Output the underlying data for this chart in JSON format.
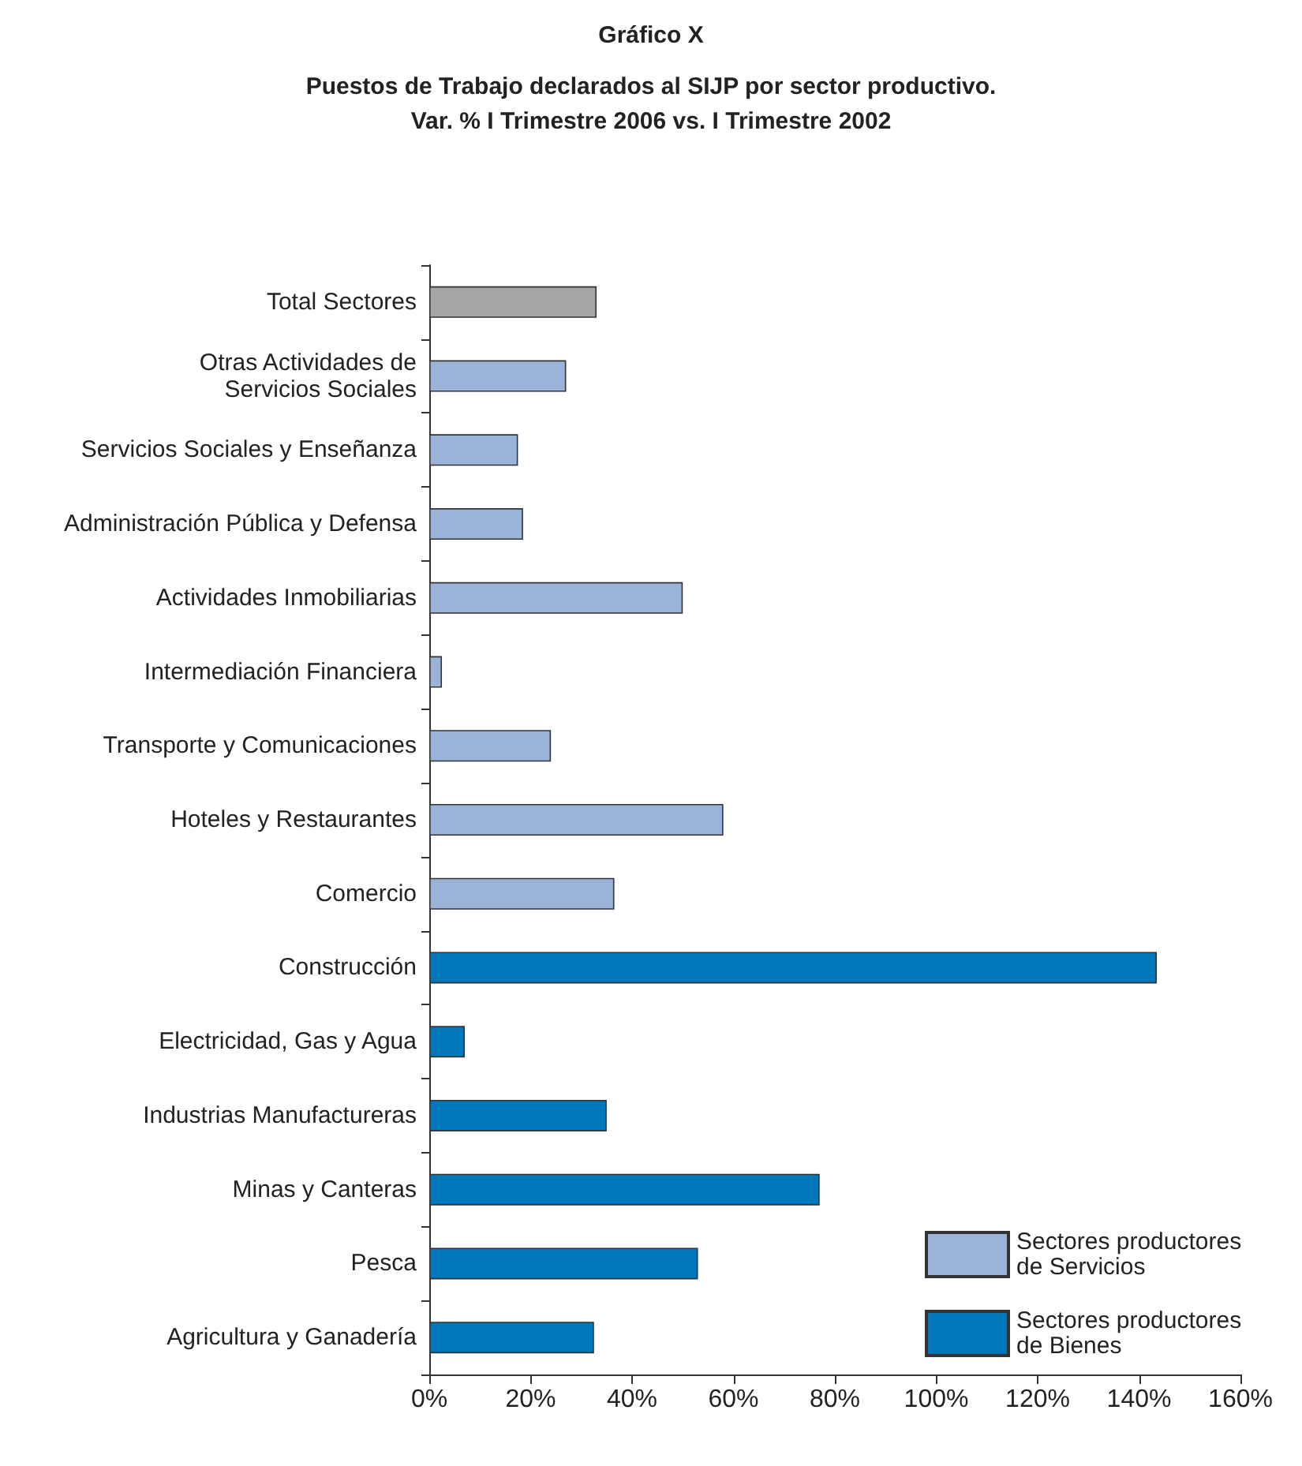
{
  "chart_data": {
    "type": "bar",
    "orientation": "horizontal",
    "title": "Gráfico X",
    "subtitle": "Puestos de Trabajo declarados al SIJP por sector productivo.\nVar. % I Trimestre 2006 vs. I Trimestre 2002",
    "categories": [
      "Total Sectores",
      "Otras Actividades de\nServicios Sociales",
      "Servicios Sociales y Enseñanza",
      "Administración Pública y Defensa",
      "Actividades Inmobiliarias",
      "Intermediación Financiera",
      "Transporte y Comunicaciones",
      "Hoteles y Restaurantes",
      "Comercio",
      "Construcción",
      "Electricidad, Gas y Agua",
      "Industrias Manufactureras",
      "Minas y Canteras",
      "Pesca",
      "Agricultura y Ganadería"
    ],
    "series": [
      {
        "color": "#a6a6a8",
        "values": [
          33,
          null,
          null,
          null,
          null,
          null,
          null,
          null,
          null,
          null,
          null,
          null,
          null,
          null,
          null
        ]
      },
      {
        "name": "Sectores productores de Servicios",
        "color": "#9bb3d9",
        "values": [
          null,
          27,
          17.5,
          18.5,
          50,
          2.5,
          24,
          58,
          36.5,
          null,
          null,
          null,
          null,
          null,
          null
        ]
      },
      {
        "name": "Sectores productores de Bienes",
        "color": "#0077b8",
        "values": [
          null,
          null,
          null,
          null,
          null,
          null,
          null,
          null,
          null,
          143.5,
          7,
          35,
          77,
          53,
          32.5
        ]
      }
    ],
    "xlim": [
      0,
      160
    ],
    "xticks": [
      {
        "value": 0,
        "label": "0%"
      },
      {
        "value": 20,
        "label": "20%"
      },
      {
        "value": 40,
        "label": "40%"
      },
      {
        "value": 60,
        "label": "60%"
      },
      {
        "value": 80,
        "label": "80%"
      },
      {
        "value": 100,
        "label": "100%"
      },
      {
        "value": 120,
        "label": "120%"
      },
      {
        "value": 140,
        "label": "140%"
      },
      {
        "value": 160,
        "label": "160%"
      }
    ],
    "grid": false,
    "legend": "bottom right"
  }
}
